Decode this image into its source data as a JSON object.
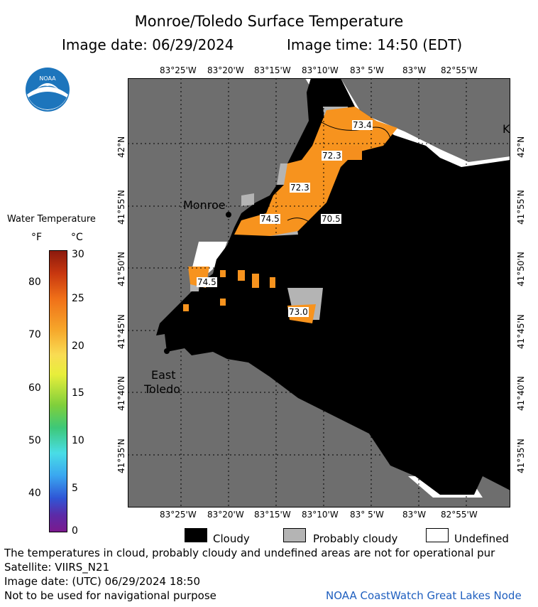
{
  "header": {
    "title": "Monroe/Toledo Surface Temperature",
    "image_date": "Image date: 06/29/2024",
    "image_time": "Image time: 14:50 (EDT)"
  },
  "map": {
    "lon_ticks": [
      "83°25'W",
      "83°20'W",
      "83°15'W",
      "83°10'W",
      "83° 5'W",
      "83°W",
      "82°55'W"
    ],
    "lat_ticks": [
      "42°N",
      "41°55'N",
      "41°50'N",
      "41°45'N",
      "41°40'N",
      "41°35'N"
    ],
    "places": {
      "monroe": "Monroe",
      "east_toledo_1": "East",
      "east_toledo_2": "Toledo",
      "k": "K"
    },
    "temp_labels": [
      "73.4",
      "72.3",
      "72.3",
      "74.5",
      "70.5",
      "74.5",
      "73.0"
    ],
    "colors": {
      "land": "#6e6e6e",
      "cloud": "#000000",
      "water": "#f7931e",
      "probably_cloudy": "#b4b4b4",
      "undefined": "#ffffff"
    }
  },
  "colorbar": {
    "title": "Water Temperature",
    "unit_f": "°F",
    "unit_c": "°C",
    "f_ticks": [
      "80",
      "70",
      "60",
      "50",
      "40"
    ],
    "c_ticks": [
      "30",
      "25",
      "20",
      "15",
      "10",
      "5",
      "0"
    ]
  },
  "legend": {
    "cloudy": "Cloudy",
    "probably_cloudy": "Probably cloudy",
    "undefined": "Undefined"
  },
  "footer": {
    "note": "The temperatures in cloud, probably cloudy and undefined areas are not for operational pur",
    "satellite": "Satellite: VIIRS_N21",
    "utc": "Image date: (UTC) 06/29/2024  18:50",
    "nav": "Not to be used for navigational purpose",
    "credit": "NOAA CoastWatch Great Lakes Node"
  },
  "logo": {
    "text": "NOAA"
  }
}
